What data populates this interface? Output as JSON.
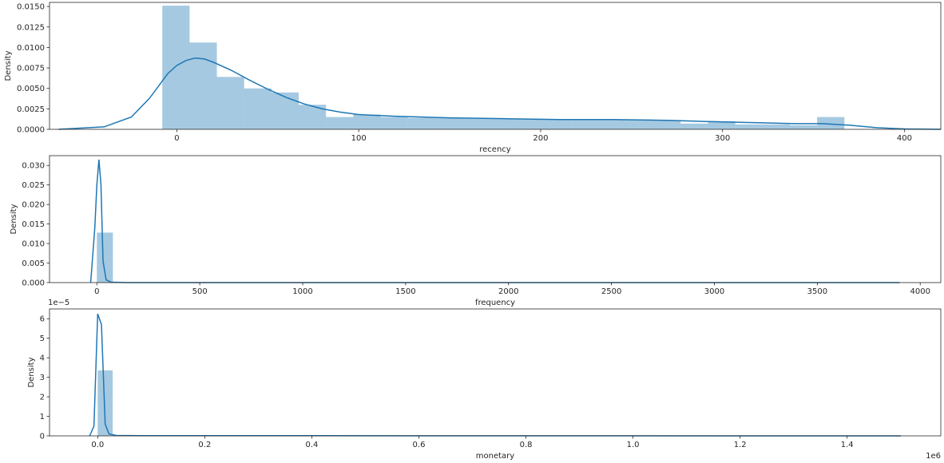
{
  "colors": {
    "bar": "#1f77b4",
    "line": "#1f77b4",
    "axis": "#262626",
    "background": "#ffffff"
  },
  "chart_data": [
    {
      "type": "histogram",
      "xlabel": "recency",
      "ylabel": "Density",
      "xlim": [
        -70,
        420
      ],
      "ylim": [
        0,
        0.0155
      ],
      "xticks": [
        0,
        100,
        200,
        300,
        400
      ],
      "yticks": [
        0.0,
        0.0025,
        0.005,
        0.0075,
        0.01,
        0.0125,
        0.015
      ],
      "ytick_labels": [
        "0.0000",
        "0.0025",
        "0.0050",
        "0.0075",
        "0.0100",
        "0.0125",
        "0.0150"
      ],
      "xtick_labels": [
        "0",
        "100",
        "200",
        "300",
        "400"
      ],
      "offset_text": "",
      "bins": [
        [
          -8,
          7,
          0.0151
        ],
        [
          7,
          22,
          0.0106
        ],
        [
          22,
          37,
          0.0064
        ],
        [
          37,
          52,
          0.005
        ],
        [
          52,
          67,
          0.0045
        ],
        [
          67,
          82,
          0.003
        ],
        [
          82,
          97,
          0.0015
        ],
        [
          97,
          112,
          0.0018
        ],
        [
          112,
          127,
          0.0015
        ],
        [
          127,
          142,
          0.0014
        ],
        [
          142,
          157,
          0.0014
        ],
        [
          157,
          172,
          0.0013
        ],
        [
          172,
          187,
          0.0013
        ],
        [
          187,
          202,
          0.0013
        ],
        [
          202,
          217,
          0.0012
        ],
        [
          217,
          232,
          0.0012
        ],
        [
          232,
          247,
          0.0012
        ],
        [
          247,
          262,
          0.0012
        ],
        [
          262,
          277,
          0.0011
        ],
        [
          277,
          292,
          0.0007
        ],
        [
          292,
          307,
          0.001
        ],
        [
          307,
          322,
          0.0006
        ],
        [
          322,
          337,
          0.0006
        ],
        [
          337,
          352,
          0.0005
        ],
        [
          352,
          367,
          0.0015
        ]
      ],
      "kde": [
        [
          -65,
          0.0
        ],
        [
          -40,
          0.0003
        ],
        [
          -25,
          0.0015
        ],
        [
          -15,
          0.0038
        ],
        [
          -5,
          0.0068
        ],
        [
          0,
          0.0078
        ],
        [
          5,
          0.0084
        ],
        [
          10,
          0.0087
        ],
        [
          15,
          0.0086
        ],
        [
          20,
          0.0082
        ],
        [
          30,
          0.0072
        ],
        [
          40,
          0.006
        ],
        [
          50,
          0.0049
        ],
        [
          60,
          0.0039
        ],
        [
          70,
          0.0031
        ],
        [
          80,
          0.0025
        ],
        [
          90,
          0.0021
        ],
        [
          100,
          0.0018
        ],
        [
          120,
          0.0016
        ],
        [
          150,
          0.0014
        ],
        [
          180,
          0.0013
        ],
        [
          210,
          0.0012
        ],
        [
          240,
          0.0012
        ],
        [
          270,
          0.0011
        ],
        [
          300,
          0.0009
        ],
        [
          320,
          0.0008
        ],
        [
          340,
          0.0007
        ],
        [
          355,
          0.0007
        ],
        [
          370,
          0.0005
        ],
        [
          385,
          0.0002
        ],
        [
          400,
          5e-05
        ],
        [
          420,
          0.0
        ]
      ]
    },
    {
      "type": "histogram",
      "xlabel": "frequency",
      "ylabel": "Density",
      "xlim": [
        -230,
        4100
      ],
      "ylim": [
        0,
        0.0325
      ],
      "xticks": [
        0,
        500,
        1000,
        1500,
        2000,
        2500,
        3000,
        3500,
        4000
      ],
      "xtick_labels": [
        "0",
        "500",
        "1000",
        "1500",
        "2000",
        "2500",
        "3000",
        "3500",
        "4000"
      ],
      "yticks": [
        0.0,
        0.005,
        0.01,
        0.015,
        0.02,
        0.025,
        0.03
      ],
      "ytick_labels": [
        "0.000",
        "0.005",
        "0.010",
        "0.015",
        "0.020",
        "0.025",
        "0.030"
      ],
      "offset_text": "",
      "bins": [
        [
          0,
          78,
          0.0128
        ],
        [
          78,
          156,
          4e-05
        ],
        [
          156,
          3900,
          1e-05
        ]
      ],
      "kde": [
        [
          -30,
          0.0
        ],
        [
          -10,
          0.014
        ],
        [
          0,
          0.025
        ],
        [
          10,
          0.0315
        ],
        [
          20,
          0.025
        ],
        [
          30,
          0.0055
        ],
        [
          45,
          0.0007
        ],
        [
          70,
          0.0001
        ],
        [
          150,
          1e-05
        ],
        [
          3900,
          0.0
        ]
      ]
    },
    {
      "type": "histogram",
      "xlabel": "monetary",
      "ylabel": "Density",
      "xlim": [
        -90000,
        1575000
      ],
      "ylim": [
        0,
        6.5
      ],
      "xticks": [
        0,
        200000,
        400000,
        600000,
        800000,
        1000000,
        1200000,
        1400000
      ],
      "xtick_labels": [
        "0.0",
        "0.2",
        "0.4",
        "0.6",
        "0.8",
        "1.0",
        "1.2",
        "1.4"
      ],
      "yticks": [
        0,
        1,
        2,
        3,
        4,
        5,
        6
      ],
      "ytick_labels": [
        "0",
        "1",
        "2",
        "3",
        "4",
        "5",
        "6"
      ],
      "offset_text": "1e−5",
      "xoffset_text": "1e6",
      "bins": [
        [
          0,
          28000,
          3.35
        ],
        [
          28000,
          56000,
          0.03
        ],
        [
          56000,
          1500000,
          0.005
        ]
      ],
      "kde": [
        [
          -15000,
          0.0
        ],
        [
          -7000,
          0.5
        ],
        [
          0,
          6.25
        ],
        [
          7000,
          5.7
        ],
        [
          14000,
          0.6
        ],
        [
          21000,
          0.1
        ],
        [
          35000,
          0.02
        ],
        [
          80000,
          0.01
        ],
        [
          1500000,
          0.0
        ]
      ]
    }
  ]
}
